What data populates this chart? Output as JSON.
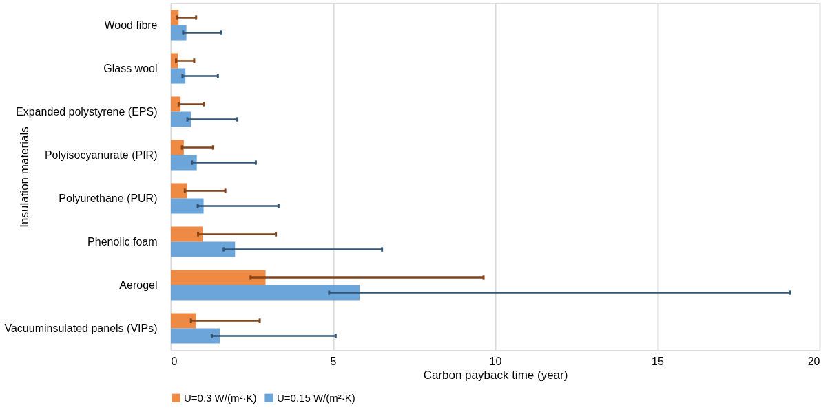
{
  "chart_data": {
    "type": "bar",
    "orientation": "horizontal",
    "xlabel": "Carbon payback time (year)",
    "ylabel": "Insulation materials",
    "categories": [
      "Wood fibre",
      "Glass wool",
      "Expanded polystyrene (EPS)",
      "Polyisocyanurate (PIR)",
      "Polyurethane (PUR)",
      "Phenolic foam",
      "Aerogel",
      "Vacuuminsulated panels (VIPs)"
    ],
    "series": [
      {
        "name": "U=0.3 W/(m²·K)",
        "color": "#ed7d31",
        "values": [
          0.24,
          0.22,
          0.3,
          0.4,
          0.5,
          0.98,
          2.92,
          0.78
        ],
        "errors": [
          [
            0.18,
            0.78
          ],
          [
            0.16,
            0.72
          ],
          [
            0.24,
            1.02
          ],
          [
            0.34,
            1.3
          ],
          [
            0.43,
            1.68
          ],
          [
            0.84,
            3.24
          ],
          [
            2.46,
            9.64
          ],
          [
            0.62,
            2.74
          ]
        ]
      },
      {
        "name": "U=0.15 W/(m²·K)",
        "color": "#5b9bd5",
        "values": [
          0.48,
          0.45,
          0.62,
          0.8,
          1.01,
          1.98,
          5.82,
          1.51
        ],
        "errors": [
          [
            0.38,
            1.56
          ],
          [
            0.36,
            1.45
          ],
          [
            0.51,
            2.05
          ],
          [
            0.65,
            2.62
          ],
          [
            0.83,
            3.32
          ],
          [
            1.63,
            6.51
          ],
          [
            4.88,
            19.08
          ],
          [
            1.26,
            5.08
          ]
        ]
      }
    ],
    "xlim": [
      0,
      20
    ],
    "xticks": [
      0,
      5,
      10,
      15,
      20
    ],
    "grid": "x",
    "legend": "bottom"
  }
}
